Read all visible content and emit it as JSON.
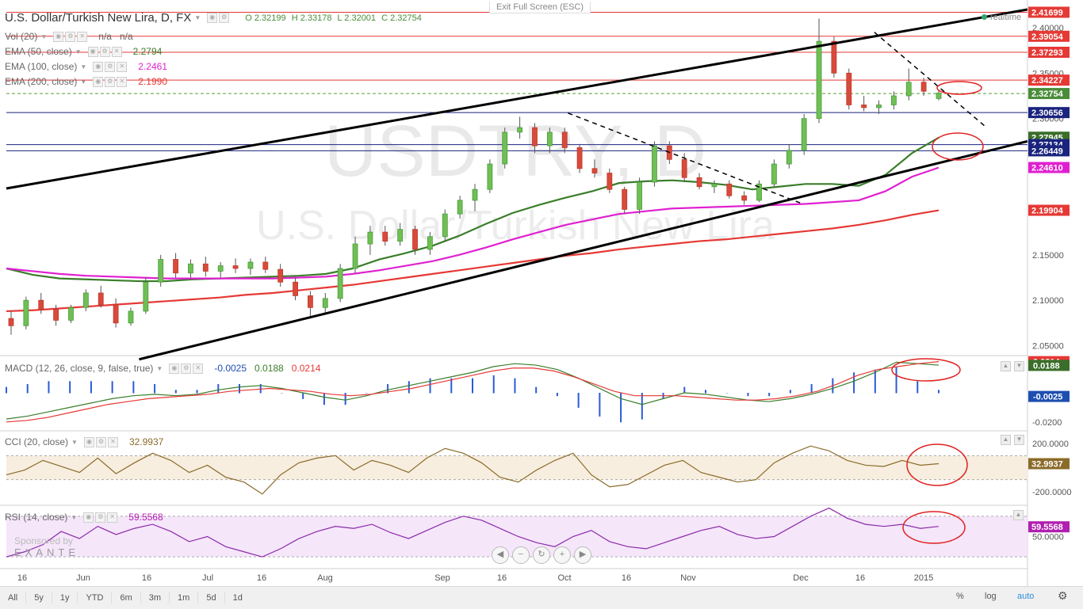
{
  "header": {
    "title": "U.S. Dollar/Turkish New Lira, D, FX",
    "ohlc": {
      "o": "O 2.32199",
      "h": "H 2.33178",
      "l": "L 2.32001",
      "c": "C 2.32754"
    },
    "exit_fullscreen": "Exit Full Screen (ESC)",
    "realtime": "realtime"
  },
  "watermark": {
    "symbol": "USDTRY, D",
    "name": "U.S. Dollar/Turkish New Lira"
  },
  "legend": {
    "vol": {
      "label": "Vol (20)",
      "v1": "n/a",
      "v2": "n/a"
    },
    "ema50": {
      "label": "EMA (50, close)",
      "value": "2.2794"
    },
    "ema100": {
      "label": "EMA (100, close)",
      "value": "2.2461"
    },
    "ema200": {
      "label": "EMA (200, close)",
      "value": "2.1990"
    },
    "macd": {
      "label": "MACD (12, 26, close, 9, false, true)",
      "v1": "-0.0025",
      "v2": "0.0188",
      "v3": "0.0214"
    },
    "cci": {
      "label": "CCI (20, close)",
      "value": "32.9937"
    },
    "rsi": {
      "label": "RSI (14, close)",
      "value": "59.5568"
    }
  },
  "price_labels": [
    {
      "text": "2.41699",
      "color": "#e53935",
      "y": 2.41699
    },
    {
      "text": "2.39054",
      "color": "#e53935",
      "y": 2.39054
    },
    {
      "text": "2.37293",
      "color": "#e53935",
      "y": 2.37293
    },
    {
      "text": "2.34227",
      "color": "#e53935",
      "y": 2.34227
    },
    {
      "text": "2.32754",
      "color": "#4a8c3a",
      "y": 2.32754
    },
    {
      "text": "2.30656",
      "color": "#1a237e",
      "y": 2.30656
    },
    {
      "text": "2.27945",
      "color": "#3a6e2a",
      "y": 2.27945
    },
    {
      "text": "2.27134",
      "color": "#1a237e",
      "y": 2.27134
    },
    {
      "text": "2.26449",
      "color": "#1a237e",
      "y": 2.26449
    },
    {
      "text": "2.24610",
      "color": "#e020d0",
      "y": 2.2461
    },
    {
      "text": "2.19904",
      "color": "#e53935",
      "y": 2.19904
    }
  ],
  "price_axis_ticks": [
    "2.40000",
    "2.35000",
    "2.30000",
    "2.15000",
    "2.10000",
    "2.05000"
  ],
  "macd_labels": [
    {
      "text": "0.0214",
      "color": "#e53935"
    },
    {
      "text": "0.0188",
      "color": "#3a6e2a"
    },
    {
      "text": "-0.0025",
      "color": "#1e4fb0"
    }
  ],
  "macd_ticks": [
    "-0.0200"
  ],
  "cci_ticks": [
    "200.0000",
    "-200.0000"
  ],
  "cci_label": {
    "text": "32.9937",
    "color": "#8b6b2a"
  },
  "rsi_ticks": [
    "50.0000"
  ],
  "rsi_label": {
    "text": "59.5568",
    "color": "#b020b0"
  },
  "x_ticks": [
    "16",
    "Jun",
    "16",
    "Jul",
    "16",
    "Aug",
    "Sep",
    "16",
    "Oct",
    "16",
    "Nov",
    "Dec",
    "16",
    "2015"
  ],
  "sponsor": {
    "line1": "Sponsored by",
    "brand": "EXANTE"
  },
  "bottom_bar": {
    "ranges": [
      "All",
      "5y",
      "1y",
      "YTD",
      "6m",
      "3m",
      "1m",
      "5d",
      "1d"
    ],
    "right": [
      "%",
      "log",
      "auto"
    ]
  },
  "chart_data": {
    "type": "candlestick",
    "x": [
      "2014-05-13",
      "2014-12-31"
    ],
    "price_ylim": [
      2.04,
      2.42
    ],
    "horizontal_levels": [
      2.41699,
      2.39054,
      2.37293,
      2.34227,
      2.32754,
      2.30656,
      2.27134,
      2.26449
    ],
    "ema": [
      {
        "name": "EMA (50, close)",
        "last": 2.2794,
        "color": "#3a7d2a",
        "values": [
          2.135,
          2.128,
          2.124,
          2.123,
          2.122,
          2.121,
          2.121,
          2.123,
          2.124,
          2.125,
          2.126,
          2.127,
          2.129,
          2.135,
          2.145,
          2.152,
          2.16,
          2.171,
          2.184,
          2.196,
          2.205,
          2.213,
          2.22,
          2.229,
          2.231,
          2.232,
          2.23,
          2.227,
          2.222,
          2.225,
          2.228,
          2.228,
          2.226,
          2.238,
          2.262,
          2.279
        ]
      },
      {
        "name": "EMA (100, close)",
        "last": 2.2461,
        "color": "#e020d0",
        "values": [
          2.135,
          2.132,
          2.129,
          2.127,
          2.126,
          2.125,
          2.124,
          2.124,
          2.124,
          2.124,
          2.124,
          2.125,
          2.126,
          2.129,
          2.133,
          2.138,
          2.143,
          2.15,
          2.158,
          2.167,
          2.175,
          2.183,
          2.189,
          2.195,
          2.198,
          2.201,
          2.202,
          2.203,
          2.204,
          2.205,
          2.206,
          2.208,
          2.21,
          2.22,
          2.236,
          2.246
        ]
      },
      {
        "name": "EMA (200, close)",
        "last": 2.199,
        "color": "#e53935",
        "values": [
          2.088,
          2.089,
          2.091,
          2.093,
          2.095,
          2.097,
          2.099,
          2.101,
          2.103,
          2.106,
          2.108,
          2.111,
          2.114,
          2.117,
          2.121,
          2.125,
          2.129,
          2.133,
          2.137,
          2.141,
          2.145,
          2.149,
          2.152,
          2.156,
          2.159,
          2.162,
          2.165,
          2.167,
          2.17,
          2.173,
          2.176,
          2.179,
          2.183,
          2.188,
          2.194,
          2.199
        ]
      }
    ],
    "ohlc": [
      [
        2.08,
        2.088,
        2.062,
        2.072
      ],
      [
        2.072,
        2.104,
        2.068,
        2.1
      ],
      [
        2.1,
        2.108,
        2.085,
        2.09
      ],
      [
        2.09,
        2.095,
        2.072,
        2.078
      ],
      [
        2.078,
        2.095,
        2.075,
        2.092
      ],
      [
        2.092,
        2.112,
        2.088,
        2.108
      ],
      [
        2.108,
        2.116,
        2.092,
        2.095
      ],
      [
        2.095,
        2.102,
        2.07,
        2.075
      ],
      [
        2.075,
        2.092,
        2.072,
        2.088
      ],
      [
        2.088,
        2.125,
        2.085,
        2.12
      ],
      [
        2.12,
        2.15,
        2.115,
        2.145
      ],
      [
        2.145,
        2.152,
        2.125,
        2.13
      ],
      [
        2.13,
        2.145,
        2.125,
        2.14
      ],
      [
        2.14,
        2.148,
        2.126,
        2.132
      ],
      [
        2.132,
        2.142,
        2.125,
        2.138
      ],
      [
        2.138,
        2.146,
        2.13,
        2.135
      ],
      [
        2.135,
        2.146,
        2.128,
        2.142
      ],
      [
        2.142,
        2.148,
        2.13,
        2.134
      ],
      [
        2.134,
        2.14,
        2.115,
        2.12
      ],
      [
        2.12,
        2.125,
        2.1,
        2.105
      ],
      [
        2.105,
        2.11,
        2.08,
        2.092
      ],
      [
        2.092,
        2.108,
        2.085,
        2.102
      ],
      [
        2.102,
        2.14,
        2.098,
        2.135
      ],
      [
        2.135,
        2.17,
        2.13,
        2.162
      ],
      [
        2.162,
        2.182,
        2.15,
        2.175
      ],
      [
        2.175,
        2.182,
        2.16,
        2.165
      ],
      [
        2.165,
        2.185,
        2.16,
        2.178
      ],
      [
        2.178,
        2.182,
        2.15,
        2.156
      ],
      [
        2.156,
        2.175,
        2.15,
        2.17
      ],
      [
        2.17,
        2.2,
        2.165,
        2.195
      ],
      [
        2.195,
        2.215,
        2.19,
        2.21
      ],
      [
        2.21,
        2.228,
        2.198,
        2.222
      ],
      [
        2.222,
        2.255,
        2.218,
        2.25
      ],
      [
        2.25,
        2.29,
        2.245,
        2.285
      ],
      [
        2.285,
        2.302,
        2.278,
        2.29
      ],
      [
        2.29,
        2.295,
        2.262,
        2.27
      ],
      [
        2.27,
        2.29,
        2.262,
        2.285
      ],
      [
        2.285,
        2.29,
        2.262,
        2.268
      ],
      [
        2.268,
        2.272,
        2.24,
        2.245
      ],
      [
        2.245,
        2.255,
        2.235,
        2.24
      ],
      [
        2.24,
        2.245,
        2.218,
        2.222
      ],
      [
        2.222,
        2.225,
        2.195,
        2.2
      ],
      [
        2.2,
        2.235,
        2.195,
        2.23
      ],
      [
        2.23,
        2.275,
        2.225,
        2.27
      ],
      [
        2.27,
        2.275,
        2.25,
        2.255
      ],
      [
        2.255,
        2.262,
        2.23,
        2.235
      ],
      [
        2.235,
        2.24,
        2.222,
        2.225
      ],
      [
        2.225,
        2.232,
        2.218,
        2.228
      ],
      [
        2.228,
        2.232,
        2.212,
        2.215
      ],
      [
        2.215,
        2.22,
        2.205,
        2.21
      ],
      [
        2.21,
        2.232,
        2.208,
        2.228
      ],
      [
        2.228,
        2.255,
        2.225,
        2.25
      ],
      [
        2.25,
        2.272,
        2.245,
        2.265
      ],
      [
        2.265,
        2.305,
        2.26,
        2.3
      ],
      [
        2.3,
        2.41,
        2.295,
        2.385
      ],
      [
        2.385,
        2.39,
        2.345,
        2.35
      ],
      [
        2.35,
        2.355,
        2.31,
        2.315
      ],
      [
        2.315,
        2.325,
        2.308,
        2.312
      ],
      [
        2.312,
        2.32,
        2.305,
        2.315
      ],
      [
        2.315,
        2.33,
        2.31,
        2.325
      ],
      [
        2.325,
        2.355,
        2.32,
        2.34
      ],
      [
        2.34,
        2.345,
        2.325,
        2.33
      ],
      [
        2.322,
        2.332,
        2.32,
        2.328
      ]
    ],
    "trendlines": [
      {
        "kind": "channel-upper",
        "from": [
          0.0,
          2.223
        ],
        "to": [
          1.0,
          2.42
        ]
      },
      {
        "kind": "channel-lower",
        "from": [
          0.13,
          2.035
        ],
        "to": [
          1.0,
          2.275
        ]
      },
      {
        "kind": "dashed-resistance",
        "from": [
          0.55,
          2.306
        ],
        "to": [
          0.78,
          2.206
        ]
      },
      {
        "kind": "dashed-resistance",
        "from": [
          0.85,
          2.395
        ],
        "to": [
          0.96,
          2.29
        ]
      }
    ],
    "macd": {
      "ylim": [
        -0.025,
        0.025
      ],
      "macd_line": [
        -0.018,
        -0.016,
        -0.013,
        -0.01,
        -0.007,
        -0.004,
        -0.002,
        -0.001,
        -0.002,
        -0.001,
        0.002,
        0.004,
        0.005,
        0.003,
        0.0,
        -0.003,
        -0.005,
        -0.002,
        0.002,
        0.005,
        0.008,
        0.011,
        0.014,
        0.018,
        0.02,
        0.019,
        0.016,
        0.01,
        0.003,
        -0.004,
        -0.008,
        -0.004,
        0.0,
        -0.001,
        -0.003,
        -0.005,
        -0.006,
        -0.004,
        -0.001,
        0.003,
        0.008,
        0.014,
        0.021,
        0.02,
        0.019
      ],
      "signal_line": [
        -0.02,
        -0.019,
        -0.017,
        -0.014,
        -0.011,
        -0.008,
        -0.006,
        -0.004,
        -0.003,
        -0.002,
        -0.001,
        0.001,
        0.002,
        0.003,
        0.002,
        0.001,
        -0.001,
        -0.002,
        -0.001,
        0.001,
        0.003,
        0.006,
        0.009,
        0.012,
        0.015,
        0.017,
        0.017,
        0.015,
        0.011,
        0.006,
        0.001,
        -0.002,
        -0.002,
        -0.002,
        -0.003,
        -0.004,
        -0.005,
        -0.005,
        -0.004,
        -0.002,
        0.001,
        0.006,
        0.012,
        0.016,
        0.018,
        0.02,
        0.0214
      ]
    },
    "cci": {
      "ylim": [
        -300,
        300
      ],
      "last": 32.9937,
      "values": [
        -60,
        -20,
        60,
        10,
        -40,
        80,
        -50,
        40,
        120,
        60,
        -40,
        20,
        -80,
        -120,
        -220,
        -60,
        40,
        80,
        100,
        -20,
        60,
        20,
        -40,
        80,
        160,
        120,
        40,
        -80,
        -120,
        -20,
        60,
        120,
        -60,
        -160,
        -140,
        -60,
        20,
        60,
        -40,
        -80,
        -120,
        -100,
        40,
        120,
        180,
        140,
        60,
        20,
        10,
        60,
        20,
        33
      ]
    },
    "rsi": {
      "ylim": [
        20,
        80
      ],
      "last": 59.5568,
      "values": [
        30,
        35,
        42,
        55,
        48,
        60,
        52,
        58,
        62,
        55,
        45,
        50,
        40,
        35,
        30,
        38,
        48,
        55,
        60,
        58,
        62,
        54,
        48,
        56,
        64,
        70,
        66,
        58,
        50,
        44,
        40,
        50,
        56,
        45,
        40,
        38,
        44,
        50,
        56,
        60,
        52,
        48,
        50,
        60,
        70,
        78,
        68,
        62,
        60,
        62,
        58,
        60
      ]
    }
  }
}
